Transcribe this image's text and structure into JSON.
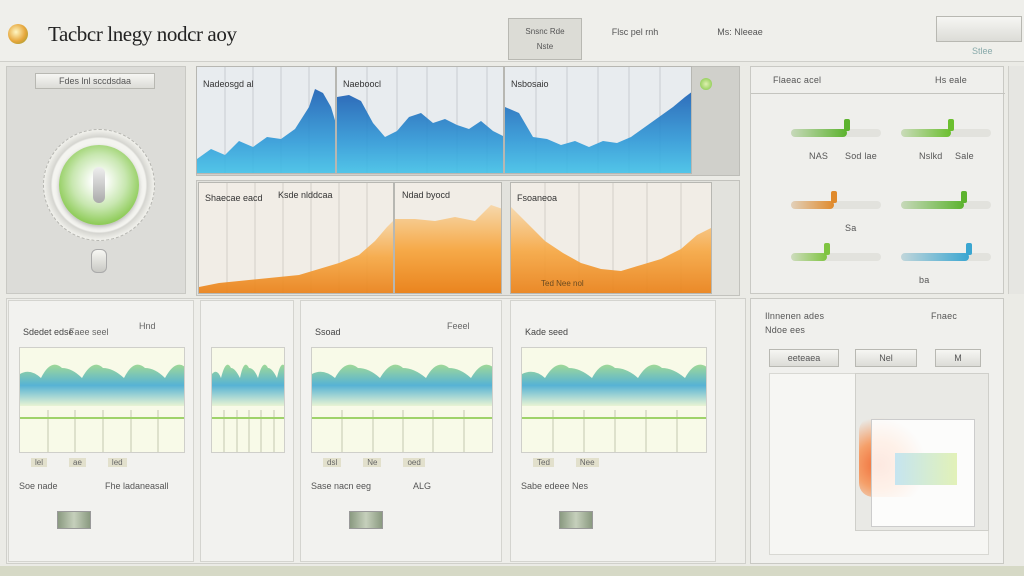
{
  "header": {
    "title": "Tacbcr lnegy nodcr aoy",
    "tabs": [
      {
        "label": "Snsnc Rde",
        "sub": "Nste"
      },
      {
        "label": "Flsc pel rnh",
        "sub": ""
      },
      {
        "label": "Ms: Nleeae",
        "sub": ""
      }
    ],
    "right_button": {
      "label": "",
      "sub": "Stlee"
    }
  },
  "gauge_panel": {
    "title": "Fdes lnl sccdsdaa"
  },
  "blue_charts": [
    {
      "title": "Nadeosgd al"
    },
    {
      "title": "Naeboocl"
    },
    {
      "title": "Nsbosaio"
    }
  ],
  "orange_charts": [
    {
      "title": "Shaecae eacd",
      "footer": ""
    },
    {
      "title": "Ksde nlddcaa",
      "footer": ""
    },
    {
      "title": "Ndad byocd",
      "footer": ""
    },
    {
      "title": "Fsoaneoa",
      "footer": "Ted Nee nol"
    }
  ],
  "right_panel": {
    "title_left": "Flaeac acel",
    "title_right": "Hs eale",
    "sliders": [
      {
        "label": "NAS",
        "value_label": "Sod lae",
        "color": "#5cb32e",
        "level": 0.62
      },
      {
        "label": "Nslkd",
        "value_label": "Sale",
        "color": "#6bbf2f",
        "level": 0.55
      },
      {
        "label": "",
        "value_label": "Sa",
        "color": "#e08a2c",
        "level": 0.48
      },
      {
        "label": "",
        "value_label": "",
        "color": "#5cb32e",
        "level": 0.7
      },
      {
        "label": "",
        "value_label": "",
        "color": "#7fc441",
        "level": 0.4
      },
      {
        "label": "ba",
        "value_label": "",
        "color": "#3aa6d1",
        "level": 0.75
      }
    ]
  },
  "bottom_tiles": [
    {
      "title": "Sdedet edse",
      "sub": "Faee seel",
      "title_right": "Hnd",
      "toolbar": [
        "lel",
        "ae",
        "led"
      ],
      "footer_left": "Soe nade",
      "footer_right": "Fhe ladaneasall"
    },
    {
      "title": "Ssoad",
      "sub": "",
      "title_right": "Feeel",
      "toolbar": [
        "dsl",
        "Ne",
        "oed"
      ],
      "footer_left": "Sase nacn eeg",
      "footer_right": "ALG"
    },
    {
      "title": "Kade seed",
      "sub": "",
      "title_right": "",
      "toolbar": [
        "Ted",
        "Nee"
      ],
      "footer_left": "Sabe edeee Nes",
      "footer_right": ""
    }
  ],
  "bottom_right": {
    "title": "Ilnnenen ades",
    "title_right": "Fnaec",
    "sub": "Ndoe ees",
    "buttons": [
      "eeteaea",
      "Nel",
      "M"
    ]
  },
  "colors": {
    "blue_deep": "#1a5fb4",
    "blue_light": "#42c3e8",
    "orange": "#f08a1f",
    "green": "#7cc540",
    "background": "#ebebe6"
  },
  "icons": [
    "app-logo-icon",
    "gauge-knob-icon",
    "green-indicator-icon"
  ]
}
